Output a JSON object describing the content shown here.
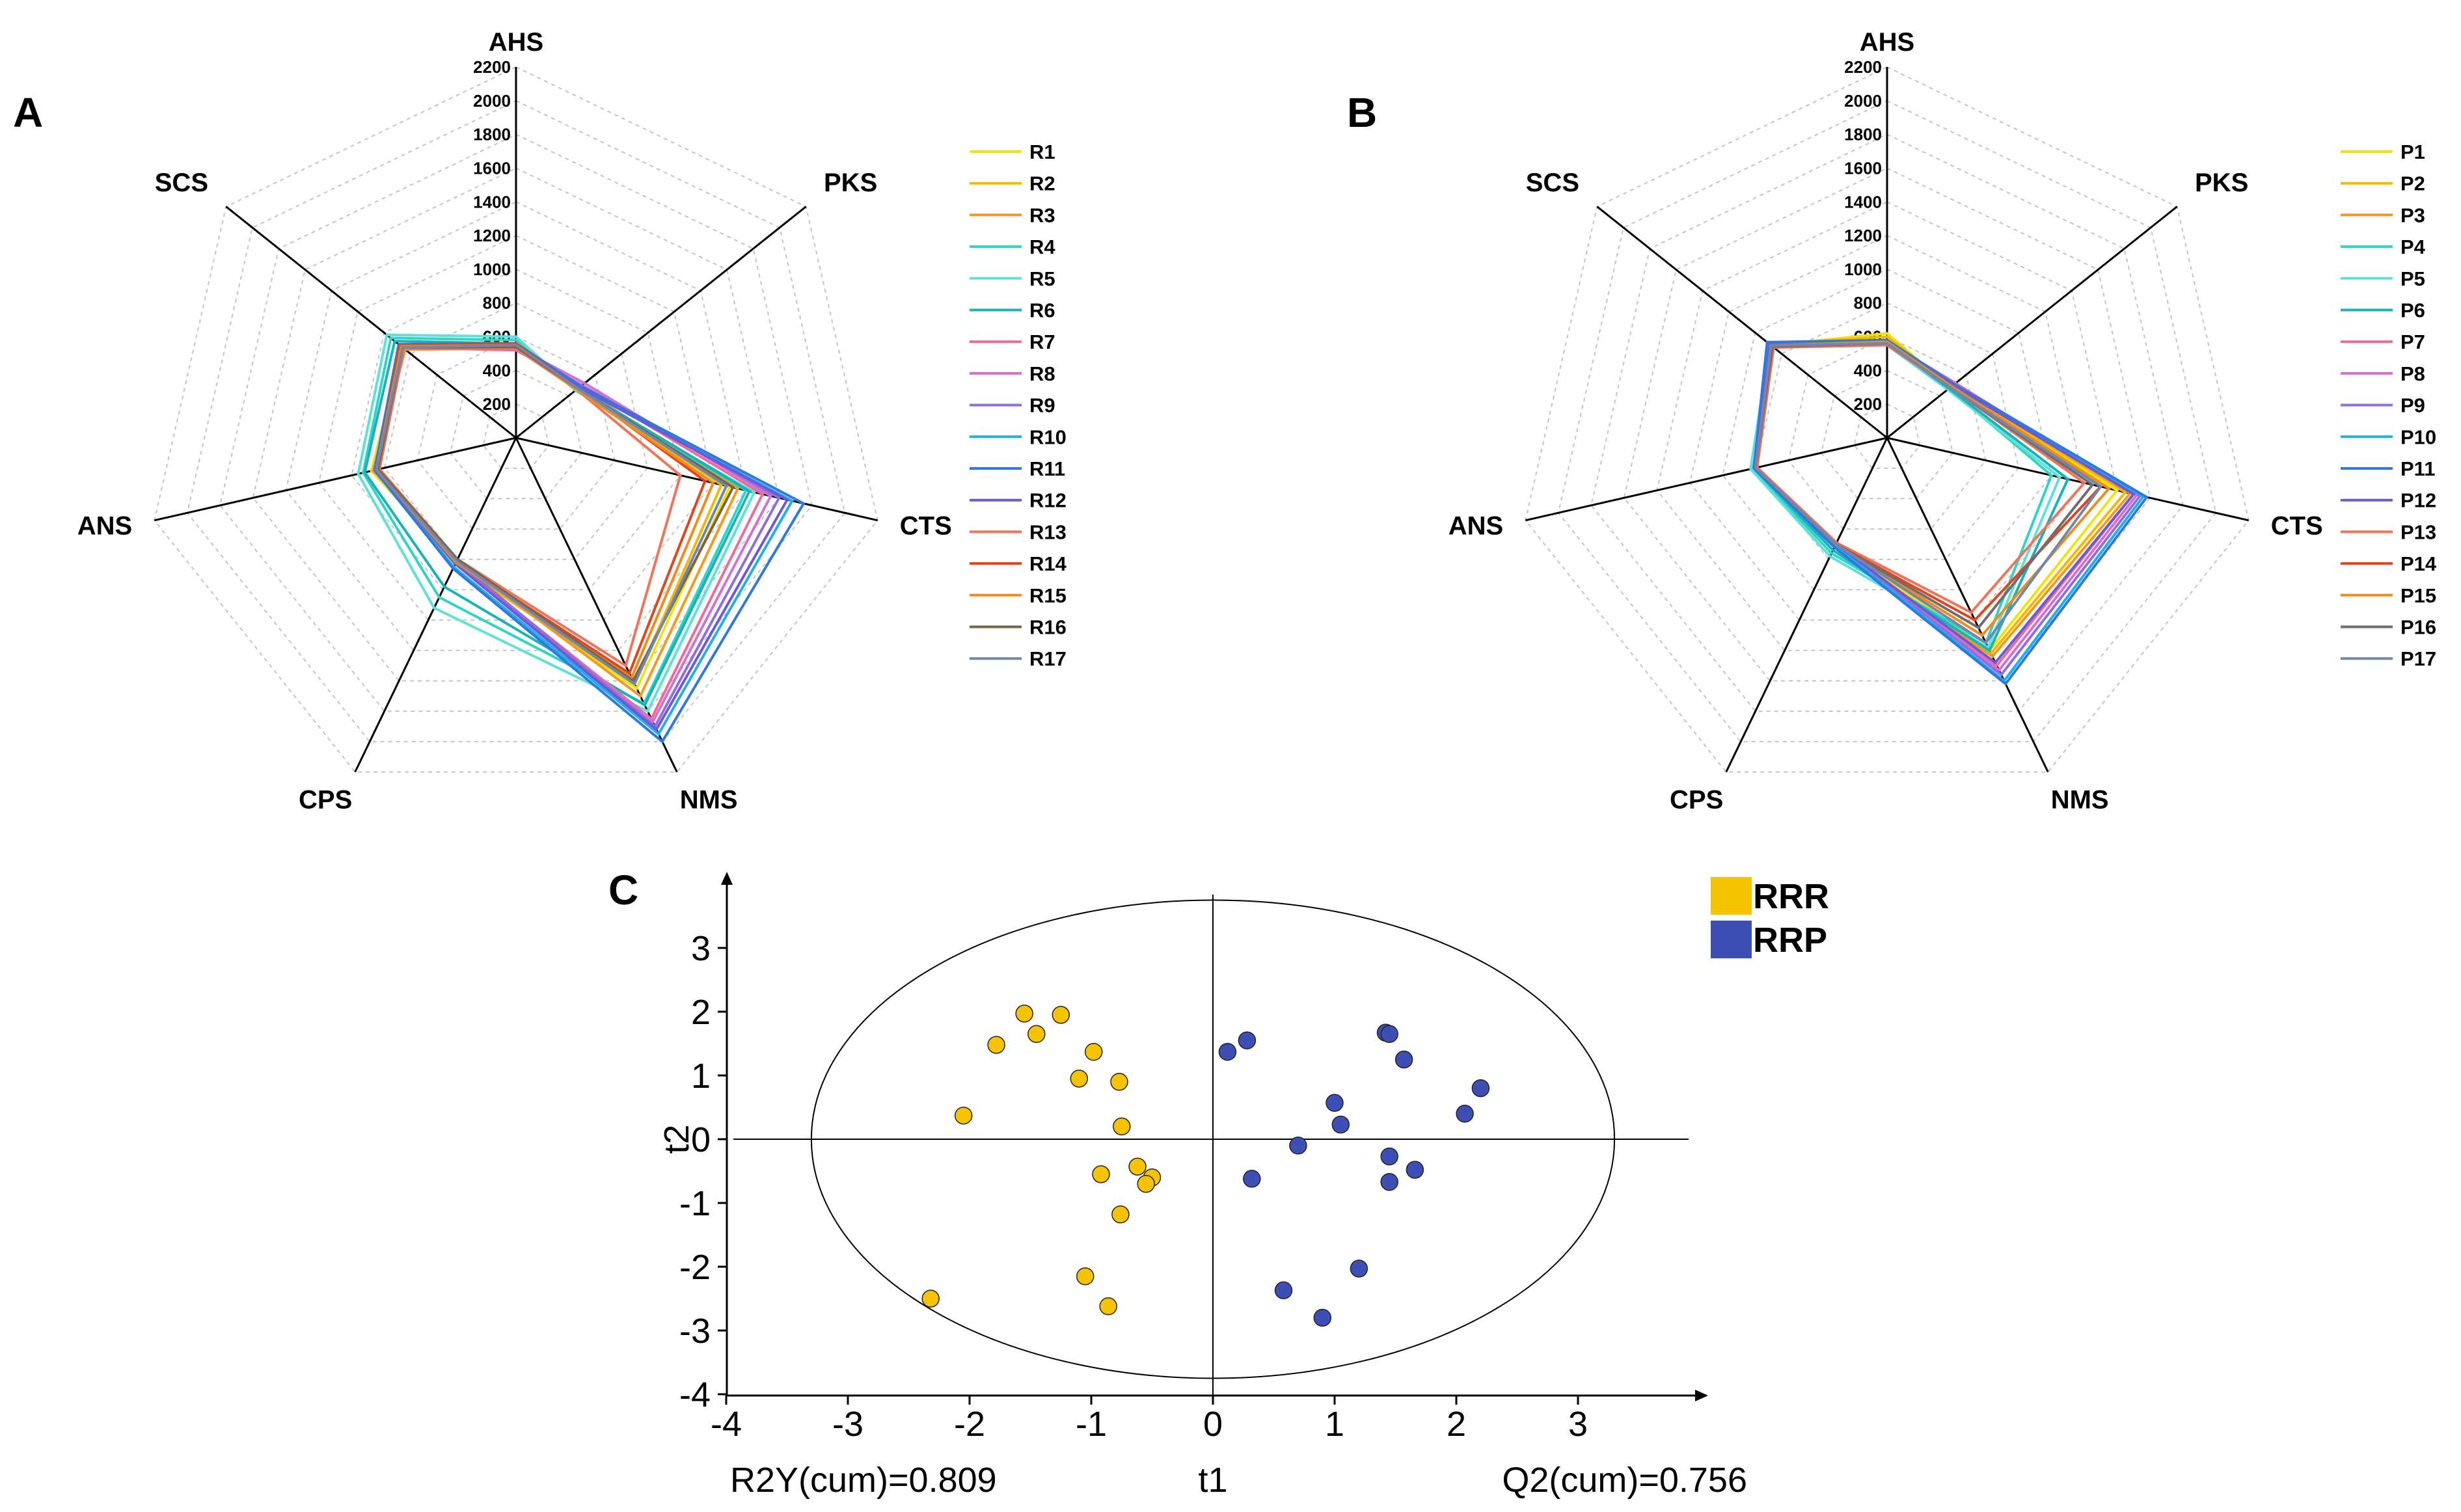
{
  "chart_data": [
    {
      "panel": "A",
      "type": "radar",
      "axes": [
        "AHS",
        "PKS",
        "CTS",
        "NMS",
        "CPS",
        "ANS",
        "SCS"
      ],
      "radial_ticks": [
        200,
        400,
        600,
        800,
        1000,
        1200,
        1400,
        1600,
        1800,
        2000,
        2200
      ],
      "radial_range": [
        0,
        2200
      ],
      "grid": "dashed",
      "legend_position": "right",
      "series": [
        {
          "name": "R1",
          "color": "#f2e20c",
          "values": [
            550,
            470,
            1300,
            1650,
            820,
            880,
            860
          ]
        },
        {
          "name": "R2",
          "color": "#f5b800",
          "values": [
            560,
            470,
            1250,
            1620,
            830,
            860,
            870
          ]
        },
        {
          "name": "R3",
          "color": "#f39a1c",
          "values": [
            530,
            480,
            1350,
            1700,
            800,
            870,
            840
          ]
        },
        {
          "name": "R4",
          "color": "#2fd3c8",
          "values": [
            580,
            460,
            1400,
            1750,
            1050,
            930,
            950
          ]
        },
        {
          "name": "R5",
          "color": "#5fe0d8",
          "values": [
            600,
            450,
            1450,
            1800,
            1120,
            960,
            980
          ]
        },
        {
          "name": "R6",
          "color": "#16b3b8",
          "values": [
            560,
            470,
            1420,
            1760,
            980,
            920,
            920
          ]
        },
        {
          "name": "R7",
          "color": "#ee6a9a",
          "values": [
            520,
            500,
            1500,
            1850,
            820,
            850,
            860
          ]
        },
        {
          "name": "R8",
          "color": "#d56fd0",
          "values": [
            540,
            520,
            1550,
            1870,
            830,
            840,
            870
          ]
        },
        {
          "name": "R9",
          "color": "#8f6ee0",
          "values": [
            530,
            500,
            1600,
            1900,
            810,
            840,
            860
          ]
        },
        {
          "name": "R10",
          "color": "#20b0e8",
          "values": [
            550,
            480,
            1680,
            1950,
            850,
            860,
            880
          ]
        },
        {
          "name": "R11",
          "color": "#2f78e0",
          "values": [
            560,
            490,
            1750,
            2000,
            860,
            860,
            890
          ]
        },
        {
          "name": "R12",
          "color": "#6a5ad8",
          "values": [
            540,
            480,
            1650,
            1920,
            830,
            850,
            870
          ]
        },
        {
          "name": "R13",
          "color": "#f0735a",
          "values": [
            530,
            460,
            1000,
            1500,
            800,
            830,
            850
          ]
        },
        {
          "name": "R14",
          "color": "#e2441b",
          "values": [
            560,
            470,
            1150,
            1550,
            810,
            850,
            880
          ]
        },
        {
          "name": "R15",
          "color": "#ef8c1a",
          "values": [
            550,
            460,
            1200,
            1580,
            820,
            850,
            870
          ]
        },
        {
          "name": "R16",
          "color": "#7a6444",
          "values": [
            540,
            470,
            1320,
            1600,
            800,
            840,
            860
          ]
        },
        {
          "name": "R17",
          "color": "#7088b0",
          "values": [
            550,
            470,
            1280,
            1620,
            810,
            850,
            860
          ]
        }
      ]
    },
    {
      "panel": "B",
      "type": "radar",
      "axes": [
        "AHS",
        "PKS",
        "CTS",
        "NMS",
        "CPS",
        "ANS",
        "SCS"
      ],
      "radial_ticks": [
        200,
        400,
        600,
        800,
        1000,
        1200,
        1400,
        1600,
        1800,
        2000,
        2200
      ],
      "radial_range": [
        0,
        2200
      ],
      "grid": "dashed",
      "legend_position": "right",
      "series": [
        {
          "name": "P1",
          "color": "#f2e20c",
          "values": [
            620,
            480,
            1400,
            1400,
            700,
            800,
            880
          ]
        },
        {
          "name": "P2",
          "color": "#f5b800",
          "values": [
            600,
            490,
            1450,
            1420,
            720,
            800,
            890
          ]
        },
        {
          "name": "P3",
          "color": "#f39a1c",
          "values": [
            580,
            500,
            1480,
            1440,
            720,
            800,
            880
          ]
        },
        {
          "name": "P4",
          "color": "#2fd3c8",
          "values": [
            560,
            470,
            1000,
            1350,
            760,
            820,
            900
          ]
        },
        {
          "name": "P5",
          "color": "#5fe0d8",
          "values": [
            550,
            460,
            1050,
            1380,
            780,
            830,
            890
          ]
        },
        {
          "name": "P6",
          "color": "#16b3b8",
          "values": [
            560,
            470,
            1100,
            1400,
            740,
            810,
            890
          ]
        },
        {
          "name": "P7",
          "color": "#ee6a9a",
          "values": [
            570,
            520,
            1500,
            1500,
            700,
            790,
            880
          ]
        },
        {
          "name": "P8",
          "color": "#d56fd0",
          "values": [
            560,
            510,
            1520,
            1530,
            700,
            790,
            880
          ]
        },
        {
          "name": "P9",
          "color": "#8f6ee0",
          "values": [
            560,
            500,
            1540,
            1560,
            700,
            800,
            890
          ]
        },
        {
          "name": "P10",
          "color": "#20b0e8",
          "values": [
            570,
            500,
            1560,
            1600,
            710,
            800,
            900
          ]
        },
        {
          "name": "P11",
          "color": "#2f78e0",
          "values": [
            580,
            510,
            1580,
            1620,
            720,
            810,
            910
          ]
        },
        {
          "name": "P12",
          "color": "#6a5ad8",
          "values": [
            560,
            500,
            1500,
            1480,
            700,
            800,
            890
          ]
        },
        {
          "name": "P13",
          "color": "#f0735a",
          "values": [
            550,
            480,
            1200,
            1150,
            690,
            790,
            860
          ]
        },
        {
          "name": "P14",
          "color": "#e2441b",
          "values": [
            560,
            490,
            1300,
            1200,
            700,
            800,
            870
          ]
        },
        {
          "name": "P15",
          "color": "#ef8c1a",
          "values": [
            570,
            490,
            1350,
            1300,
            700,
            800,
            880
          ]
        },
        {
          "name": "P16",
          "color": "#6e6e6e",
          "values": [
            560,
            480,
            1250,
            1250,
            700,
            800,
            870
          ]
        },
        {
          "name": "P17",
          "color": "#7088b0",
          "values": [
            560,
            480,
            1300,
            1350,
            700,
            800,
            880
          ]
        }
      ]
    },
    {
      "panel": "C",
      "type": "scatter",
      "xlabel": "t1",
      "ylabel": "t2",
      "xlim": [
        -4,
        4
      ],
      "ylim": [
        -4,
        4
      ],
      "xticks": [
        "-4",
        "-3",
        "-2",
        "-1",
        "0",
        "1",
        "2",
        "3"
      ],
      "yticks": [
        "-4",
        "-3",
        "-2",
        "-1",
        "0",
        "1",
        "2",
        "3"
      ],
      "ellipse": {
        "rx": 3.3,
        "ry": 3.75
      },
      "r2y_text": "R2Y(cum)=0.809",
      "q2_text": "Q2(cum)=0.756",
      "legend_position": "top-right",
      "series": [
        {
          "name": "RRR",
          "color": "#f5c300",
          "points": [
            [
              -1.55,
              1.97
            ],
            [
              -1.25,
              1.95
            ],
            [
              -1.78,
              1.48
            ],
            [
              -1.45,
              1.65
            ],
            [
              -0.98,
              1.37
            ],
            [
              -1.1,
              0.95
            ],
            [
              -0.77,
              0.9
            ],
            [
              -2.05,
              0.37
            ],
            [
              -0.75,
              0.2
            ],
            [
              -0.62,
              -0.43
            ],
            [
              -0.92,
              -0.55
            ],
            [
              -0.5,
              -0.6
            ],
            [
              -0.55,
              -0.7
            ],
            [
              -0.76,
              -1.18
            ],
            [
              -1.05,
              -2.15
            ],
            [
              -0.86,
              -2.62
            ],
            [
              -2.32,
              -2.5
            ]
          ]
        },
        {
          "name": "RRP",
          "color": "#3d4fb5",
          "points": [
            [
              0.28,
              1.55
            ],
            [
              0.12,
              1.37
            ],
            [
              1.42,
              1.67
            ],
            [
              1.45,
              1.65
            ],
            [
              1.57,
              1.25
            ],
            [
              2.2,
              0.8
            ],
            [
              1.0,
              0.57
            ],
            [
              2.07,
              0.4
            ],
            [
              1.05,
              0.23
            ],
            [
              0.7,
              -0.1
            ],
            [
              1.45,
              -0.27
            ],
            [
              1.66,
              -0.48
            ],
            [
              0.32,
              -0.62
            ],
            [
              1.45,
              -0.67
            ],
            [
              1.2,
              -2.03
            ],
            [
              0.58,
              -2.37
            ],
            [
              0.9,
              -2.8
            ]
          ]
        }
      ]
    }
  ]
}
